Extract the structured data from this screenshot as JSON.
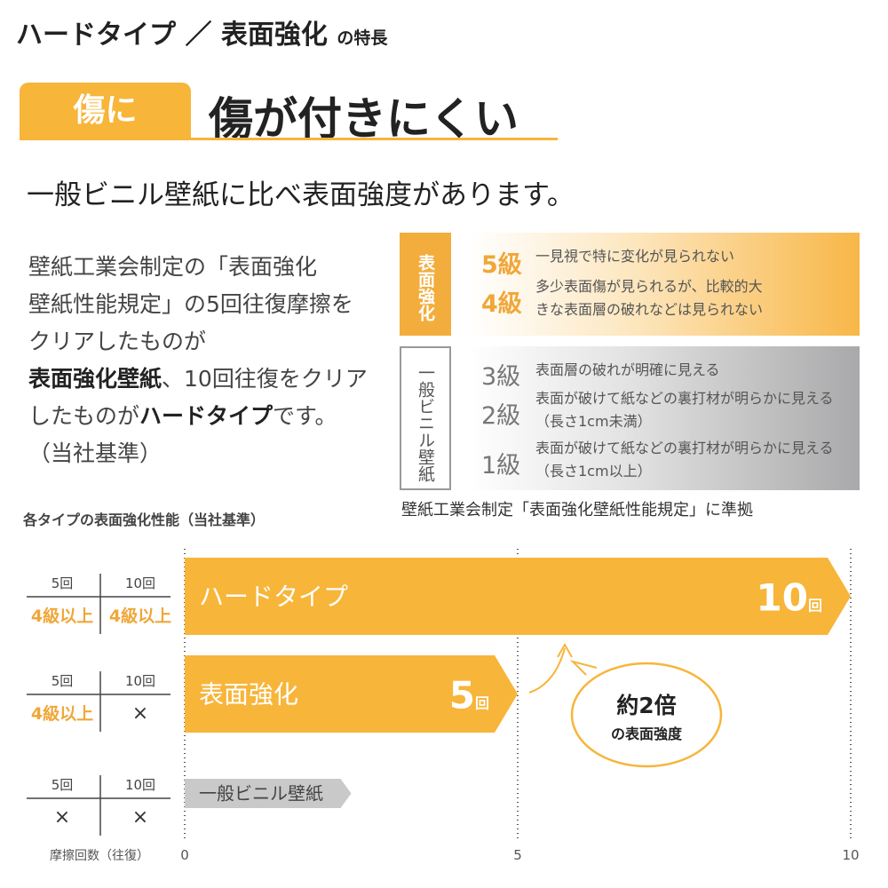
{
  "header": {
    "title": "ハードタイプ ／ 表面強化",
    "title_suffix": "の特長"
  },
  "banner": {
    "badge": "傷に",
    "heading": "傷が付きにくい"
  },
  "subtitle": "一般ビニル壁紙に比べ表面強度があります。",
  "paragraph": {
    "lines": [
      "壁紙工業会制定の「表面強化",
      "壁紙性能規定」の5回往復摩擦を",
      "クリアしたものが"
    ],
    "bold1": "表面強化壁紙",
    "line4_rest": "、10回往復をクリア",
    "line5_a": "したものが",
    "bold2": "ハードタイプ",
    "line5_b": "です。",
    "line6": "（当社基準）"
  },
  "grades": {
    "surface_label": "表面強化",
    "vinyl_label": "一般ビニル壁紙",
    "items": [
      {
        "grade": "5級",
        "desc": "一見視で特に変化が見られない"
      },
      {
        "grade": "4級",
        "desc": "多少表面傷が見られるが、比較的大きな表面層の破れなどは見られない"
      },
      {
        "grade": "3級",
        "desc": "表面層の破れが明確に見える"
      },
      {
        "grade": "2級",
        "desc": "表面が破けて紙などの裏打材が明らかに見える（長さ1cm未満）"
      },
      {
        "grade": "1級",
        "desc": "表面が破けて紙などの裏打材が明らかに見える（長さ1cm以上）"
      }
    ],
    "caption": "壁紙工業会制定「表面強化壁紙性能規定」に準拠"
  },
  "colors": {
    "accent": "#f7b53a",
    "grade_text": "#f0a738",
    "grey": "#c9c9ca"
  },
  "chart_data": {
    "type": "bar",
    "orientation": "horizontal",
    "title": "各タイプの表面強化性能（当社基準）",
    "xlabel": "摩擦回数（往復）",
    "xlim": [
      0,
      10
    ],
    "ticks": [
      "0",
      "5",
      "10"
    ],
    "grid": "dotted vertical at 0, 5, 10",
    "categories": [
      "ハードタイプ",
      "表面強化",
      "一般ビニル壁紙"
    ],
    "values": [
      10,
      5,
      2.5
    ],
    "data_labels": [
      {
        "num": "10",
        "unit": "回"
      },
      {
        "num": "5",
        "unit": "回"
      },
      null
    ],
    "table_header": [
      "5回",
      "10回"
    ],
    "table_rows": [
      [
        "4級以上",
        "4級以上"
      ],
      [
        "4級以上",
        "×"
      ],
      [
        "×",
        "×"
      ]
    ],
    "annotation": {
      "line1": "約2倍",
      "line2": "の表面強度"
    }
  }
}
